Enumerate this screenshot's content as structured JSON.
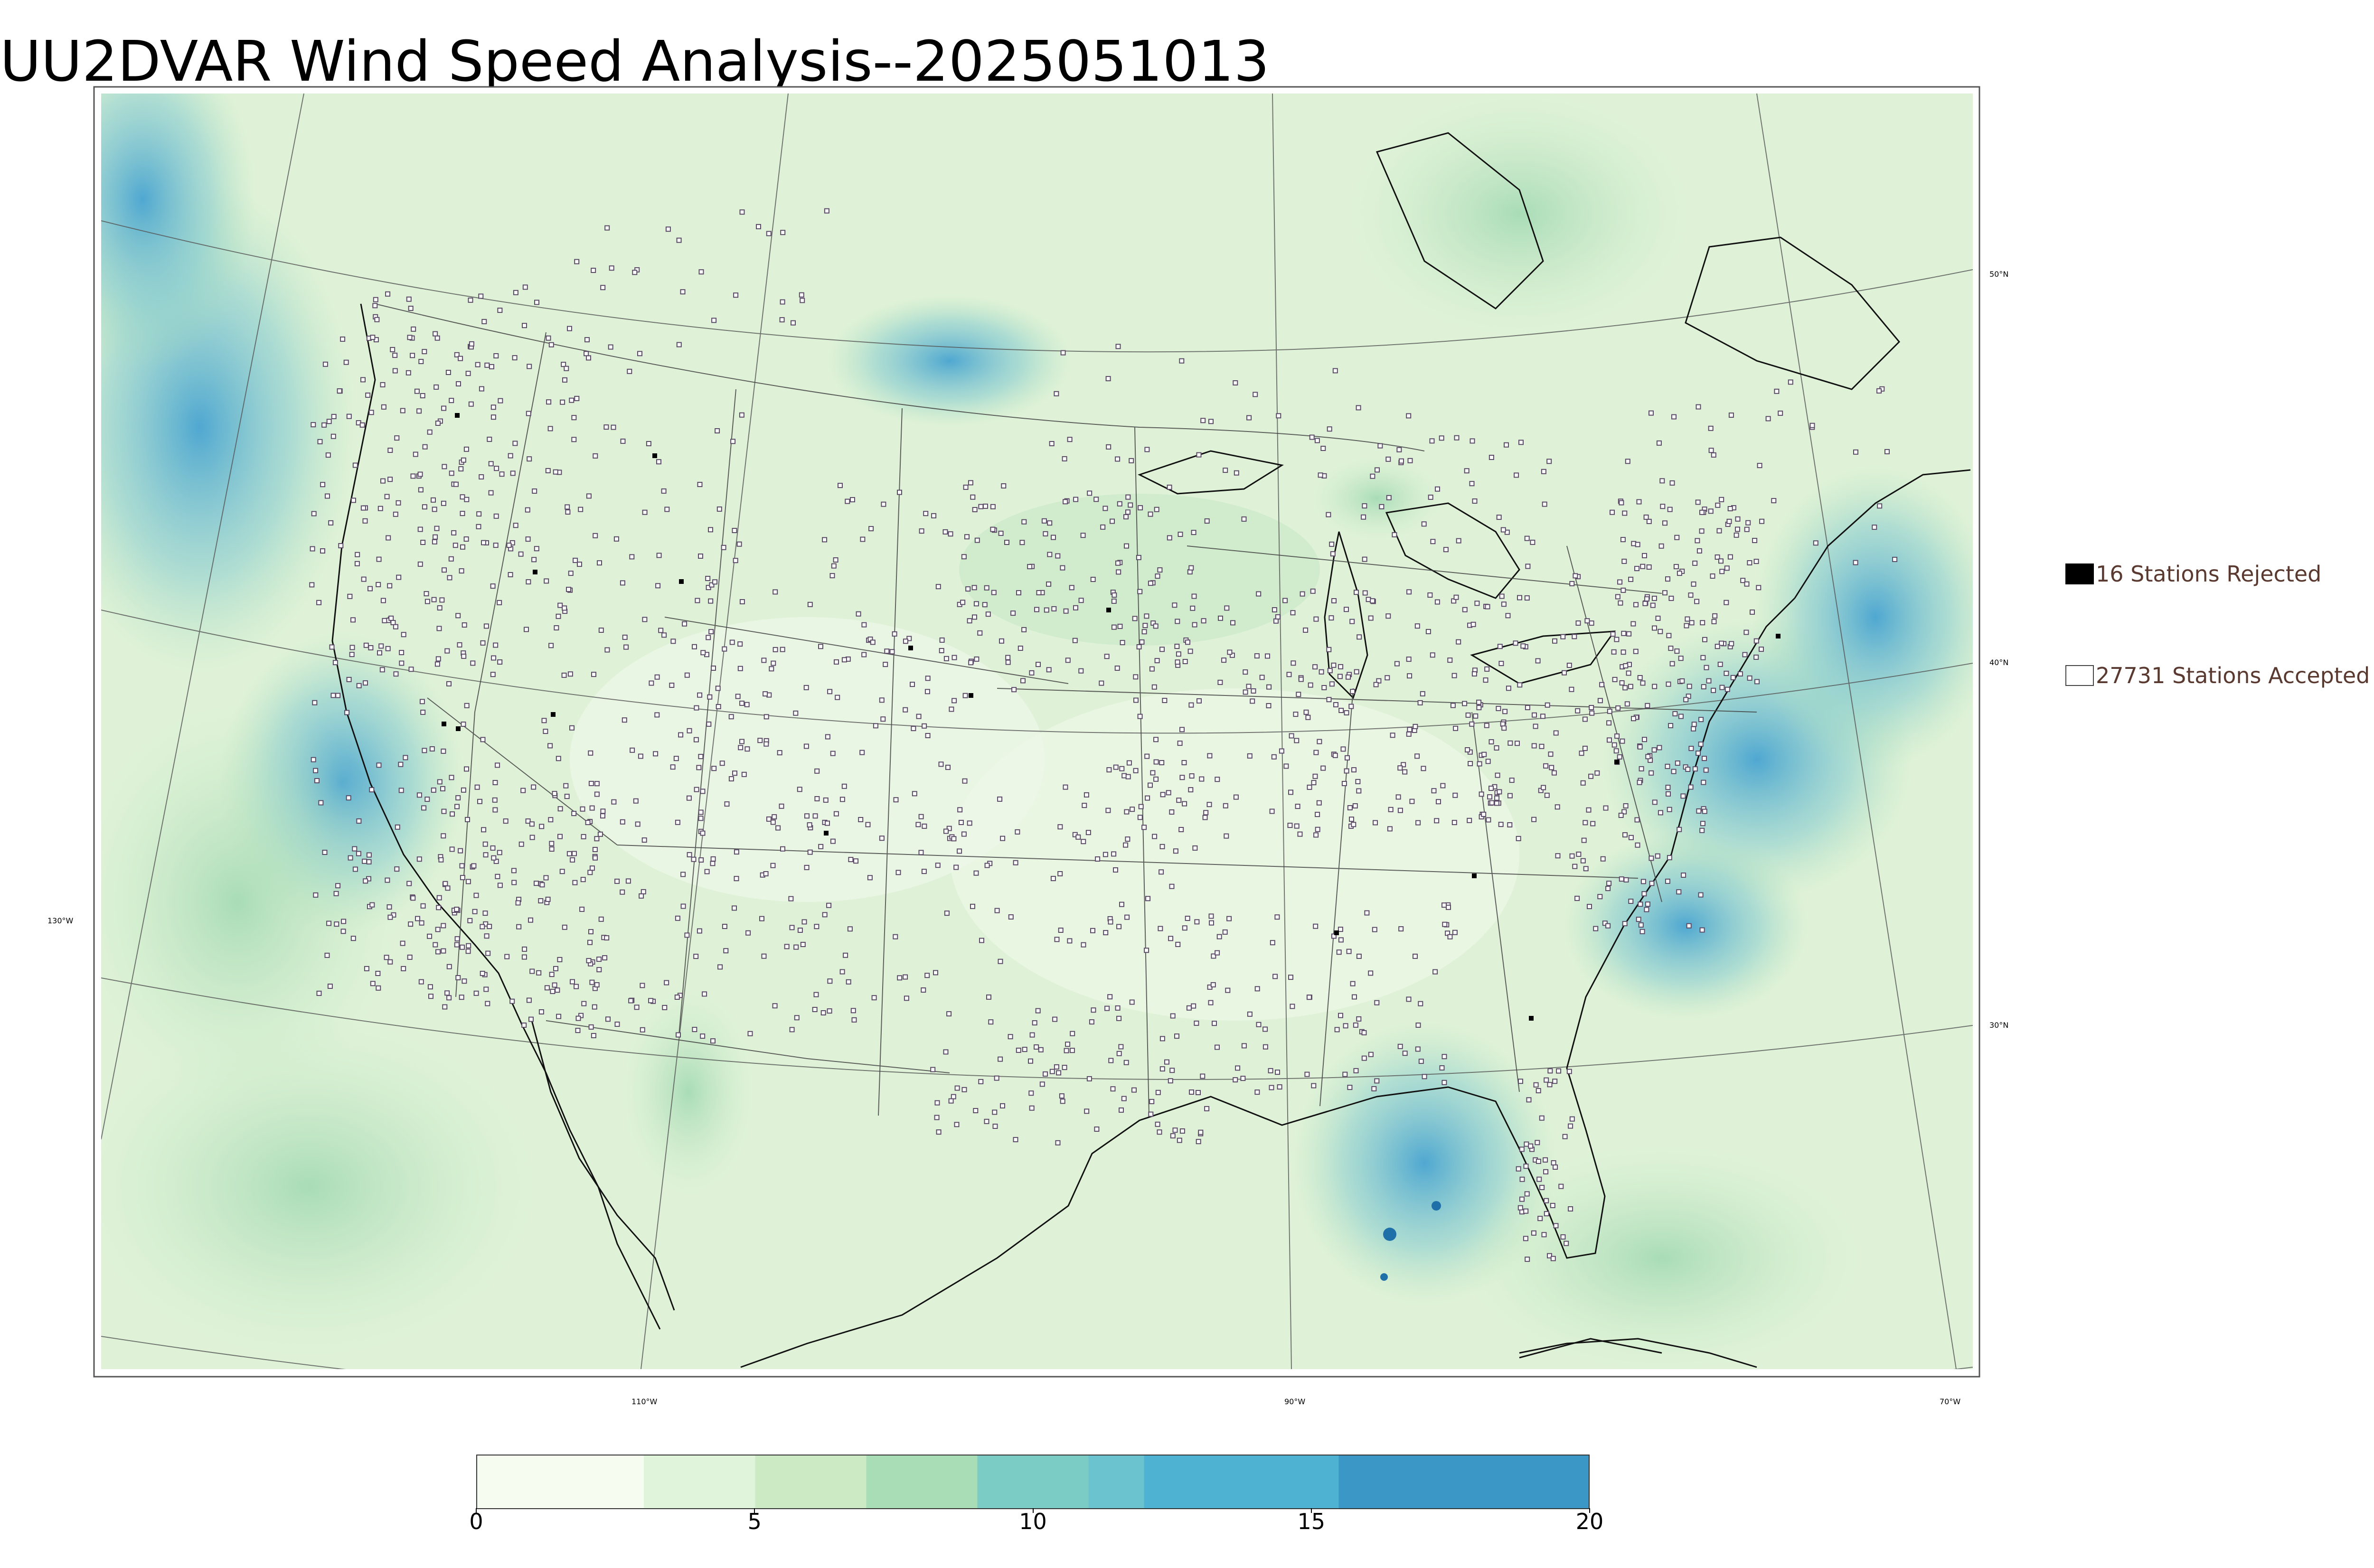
{
  "title": "UU2DVAR Wind Speed Analysis--2025051013",
  "graticule": {
    "lat_labels": [
      "50°N",
      "40°N",
      "30°N"
    ],
    "lon_labels": [
      "130°W",
      "110°W",
      "90°W",
      "70°W"
    ]
  },
  "legend": {
    "rejected": {
      "label": "16 Stations Rejected",
      "swatch_color": "#000000",
      "count": 16
    },
    "accepted": {
      "label": "27731 Stations Accepted",
      "swatch_color": "#ffffff",
      "count": 27731
    }
  },
  "colorbar": {
    "min": 0,
    "max": 20,
    "ticks": [
      "0",
      "5",
      "10",
      "15",
      "20"
    ],
    "stops": [
      {
        "value": 0,
        "color": "#f7fcf0"
      },
      {
        "value": 3,
        "color": "#e0f3db"
      },
      {
        "value": 5,
        "color": "#ccebc5"
      },
      {
        "value": 7,
        "color": "#a8ddb5"
      },
      {
        "value": 9,
        "color": "#7bccc4"
      },
      {
        "value": 11,
        "color": "#6bc3cf"
      },
      {
        "value": 12,
        "color": "#4eb3d3"
      },
      {
        "value": 13,
        "color": "#4eb3d3"
      },
      {
        "value": 15.5,
        "color": "#3b98c6"
      },
      {
        "value": 20,
        "color": "#1a6ba6"
      }
    ]
  },
  "colors": {
    "land_base": "#e6f5e1",
    "high_wind": "#4aa8d4",
    "coast": "#111111",
    "borders": "#444444"
  }
}
